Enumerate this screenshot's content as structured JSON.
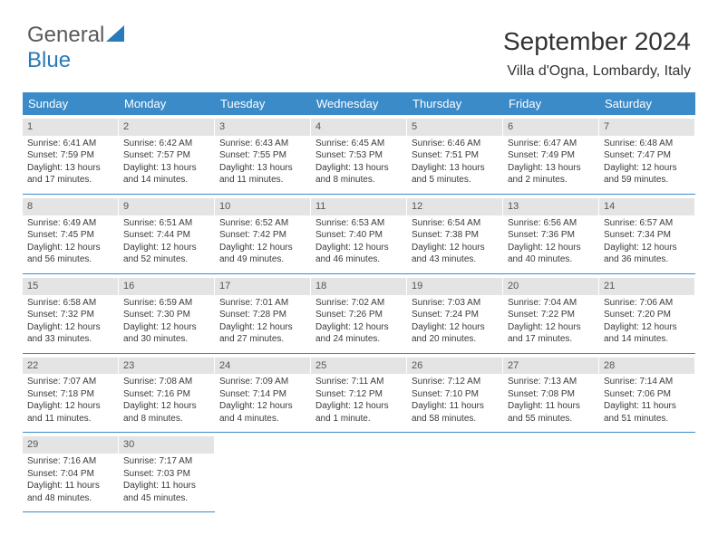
{
  "logo": {
    "text1": "General",
    "text2": "Blue"
  },
  "title": "September 2024",
  "location": "Villa d'Ogna, Lombardy, Italy",
  "colors": {
    "header_bg": "#3b8bc9",
    "header_text": "#ffffff",
    "daynum_bg": "#e4e4e4",
    "daynum_text": "#555555",
    "body_text": "#3a3a3a",
    "logo_gray": "#5a5a5a",
    "logo_blue": "#2a7ab8",
    "divider": "#3b8bc9"
  },
  "day_headers": [
    "Sunday",
    "Monday",
    "Tuesday",
    "Wednesday",
    "Thursday",
    "Friday",
    "Saturday"
  ],
  "weeks": [
    [
      {
        "num": "1",
        "sunrise": "Sunrise: 6:41 AM",
        "sunset": "Sunset: 7:59 PM",
        "dl1": "Daylight: 13 hours",
        "dl2": "and 17 minutes."
      },
      {
        "num": "2",
        "sunrise": "Sunrise: 6:42 AM",
        "sunset": "Sunset: 7:57 PM",
        "dl1": "Daylight: 13 hours",
        "dl2": "and 14 minutes."
      },
      {
        "num": "3",
        "sunrise": "Sunrise: 6:43 AM",
        "sunset": "Sunset: 7:55 PM",
        "dl1": "Daylight: 13 hours",
        "dl2": "and 11 minutes."
      },
      {
        "num": "4",
        "sunrise": "Sunrise: 6:45 AM",
        "sunset": "Sunset: 7:53 PM",
        "dl1": "Daylight: 13 hours",
        "dl2": "and 8 minutes."
      },
      {
        "num": "5",
        "sunrise": "Sunrise: 6:46 AM",
        "sunset": "Sunset: 7:51 PM",
        "dl1": "Daylight: 13 hours",
        "dl2": "and 5 minutes."
      },
      {
        "num": "6",
        "sunrise": "Sunrise: 6:47 AM",
        "sunset": "Sunset: 7:49 PM",
        "dl1": "Daylight: 13 hours",
        "dl2": "and 2 minutes."
      },
      {
        "num": "7",
        "sunrise": "Sunrise: 6:48 AM",
        "sunset": "Sunset: 7:47 PM",
        "dl1": "Daylight: 12 hours",
        "dl2": "and 59 minutes."
      }
    ],
    [
      {
        "num": "8",
        "sunrise": "Sunrise: 6:49 AM",
        "sunset": "Sunset: 7:45 PM",
        "dl1": "Daylight: 12 hours",
        "dl2": "and 56 minutes."
      },
      {
        "num": "9",
        "sunrise": "Sunrise: 6:51 AM",
        "sunset": "Sunset: 7:44 PM",
        "dl1": "Daylight: 12 hours",
        "dl2": "and 52 minutes."
      },
      {
        "num": "10",
        "sunrise": "Sunrise: 6:52 AM",
        "sunset": "Sunset: 7:42 PM",
        "dl1": "Daylight: 12 hours",
        "dl2": "and 49 minutes."
      },
      {
        "num": "11",
        "sunrise": "Sunrise: 6:53 AM",
        "sunset": "Sunset: 7:40 PM",
        "dl1": "Daylight: 12 hours",
        "dl2": "and 46 minutes."
      },
      {
        "num": "12",
        "sunrise": "Sunrise: 6:54 AM",
        "sunset": "Sunset: 7:38 PM",
        "dl1": "Daylight: 12 hours",
        "dl2": "and 43 minutes."
      },
      {
        "num": "13",
        "sunrise": "Sunrise: 6:56 AM",
        "sunset": "Sunset: 7:36 PM",
        "dl1": "Daylight: 12 hours",
        "dl2": "and 40 minutes."
      },
      {
        "num": "14",
        "sunrise": "Sunrise: 6:57 AM",
        "sunset": "Sunset: 7:34 PM",
        "dl1": "Daylight: 12 hours",
        "dl2": "and 36 minutes."
      }
    ],
    [
      {
        "num": "15",
        "sunrise": "Sunrise: 6:58 AM",
        "sunset": "Sunset: 7:32 PM",
        "dl1": "Daylight: 12 hours",
        "dl2": "and 33 minutes."
      },
      {
        "num": "16",
        "sunrise": "Sunrise: 6:59 AM",
        "sunset": "Sunset: 7:30 PM",
        "dl1": "Daylight: 12 hours",
        "dl2": "and 30 minutes."
      },
      {
        "num": "17",
        "sunrise": "Sunrise: 7:01 AM",
        "sunset": "Sunset: 7:28 PM",
        "dl1": "Daylight: 12 hours",
        "dl2": "and 27 minutes."
      },
      {
        "num": "18",
        "sunrise": "Sunrise: 7:02 AM",
        "sunset": "Sunset: 7:26 PM",
        "dl1": "Daylight: 12 hours",
        "dl2": "and 24 minutes."
      },
      {
        "num": "19",
        "sunrise": "Sunrise: 7:03 AM",
        "sunset": "Sunset: 7:24 PM",
        "dl1": "Daylight: 12 hours",
        "dl2": "and 20 minutes."
      },
      {
        "num": "20",
        "sunrise": "Sunrise: 7:04 AM",
        "sunset": "Sunset: 7:22 PM",
        "dl1": "Daylight: 12 hours",
        "dl2": "and 17 minutes."
      },
      {
        "num": "21",
        "sunrise": "Sunrise: 7:06 AM",
        "sunset": "Sunset: 7:20 PM",
        "dl1": "Daylight: 12 hours",
        "dl2": "and 14 minutes."
      }
    ],
    [
      {
        "num": "22",
        "sunrise": "Sunrise: 7:07 AM",
        "sunset": "Sunset: 7:18 PM",
        "dl1": "Daylight: 12 hours",
        "dl2": "and 11 minutes."
      },
      {
        "num": "23",
        "sunrise": "Sunrise: 7:08 AM",
        "sunset": "Sunset: 7:16 PM",
        "dl1": "Daylight: 12 hours",
        "dl2": "and 8 minutes."
      },
      {
        "num": "24",
        "sunrise": "Sunrise: 7:09 AM",
        "sunset": "Sunset: 7:14 PM",
        "dl1": "Daylight: 12 hours",
        "dl2": "and 4 minutes."
      },
      {
        "num": "25",
        "sunrise": "Sunrise: 7:11 AM",
        "sunset": "Sunset: 7:12 PM",
        "dl1": "Daylight: 12 hours",
        "dl2": "and 1 minute."
      },
      {
        "num": "26",
        "sunrise": "Sunrise: 7:12 AM",
        "sunset": "Sunset: 7:10 PM",
        "dl1": "Daylight: 11 hours",
        "dl2": "and 58 minutes."
      },
      {
        "num": "27",
        "sunrise": "Sunrise: 7:13 AM",
        "sunset": "Sunset: 7:08 PM",
        "dl1": "Daylight: 11 hours",
        "dl2": "and 55 minutes."
      },
      {
        "num": "28",
        "sunrise": "Sunrise: 7:14 AM",
        "sunset": "Sunset: 7:06 PM",
        "dl1": "Daylight: 11 hours",
        "dl2": "and 51 minutes."
      }
    ],
    [
      {
        "num": "29",
        "sunrise": "Sunrise: 7:16 AM",
        "sunset": "Sunset: 7:04 PM",
        "dl1": "Daylight: 11 hours",
        "dl2": "and 48 minutes."
      },
      {
        "num": "30",
        "sunrise": "Sunrise: 7:17 AM",
        "sunset": "Sunset: 7:03 PM",
        "dl1": "Daylight: 11 hours",
        "dl2": "and 45 minutes."
      },
      null,
      null,
      null,
      null,
      null
    ]
  ]
}
